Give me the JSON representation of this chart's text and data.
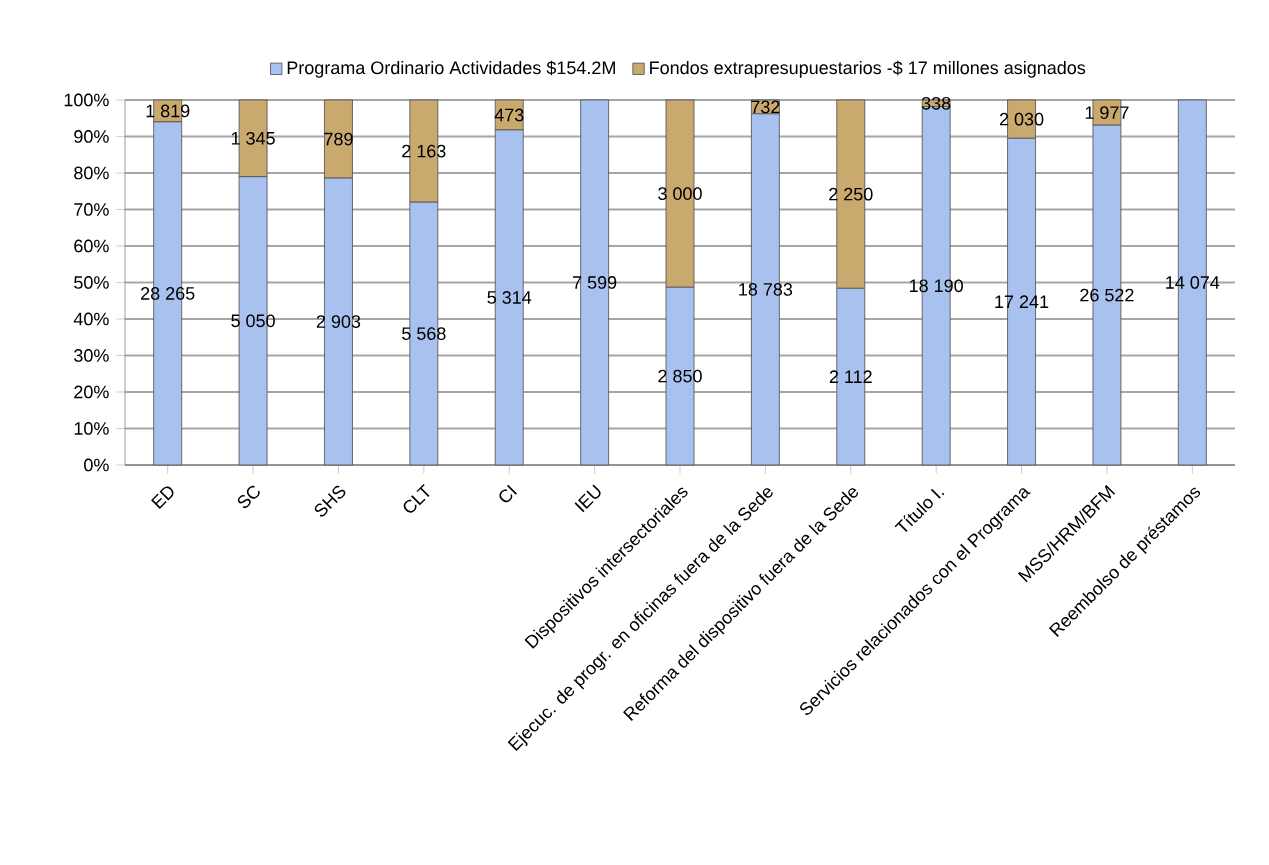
{
  "chart_data": {
    "type": "bar",
    "stacked": true,
    "categories": [
      "ED",
      "SC",
      "SHS",
      "CLT",
      "CI",
      "IEU",
      "Dispositivos intersectoriales",
      "Ejecuc. de progr. en oficinas fuera de la Sede",
      "Reforma del dispositivo fuera de la Sede",
      "Título I.",
      "Servicios relacionados con el Programa",
      "MSS/HRM/BFM",
      "Reembolso de préstamos"
    ],
    "series": [
      {
        "name": "Programa Ordinario   Actividades $154.2M",
        "color": "#a9c1ee",
        "values": [
          94.0,
          79.0,
          78.6,
          72.0,
          91.8,
          100,
          48.7,
          96.2,
          48.4,
          98.2,
          89.5,
          93.1,
          100
        ]
      },
      {
        "name": "Fondos extrapresupuestarios -$ 17 millones asignados",
        "color": "#c9a96e",
        "values": [
          6.0,
          21.0,
          21.4,
          28.0,
          8.2,
          0,
          51.3,
          3.8,
          51.6,
          1.8,
          10.5,
          6.9,
          0
        ]
      }
    ],
    "annotations": [
      "28 265",
      "1 819",
      "5 050",
      "1 345",
      "2 903",
      "789",
      "5 568",
      "2 163",
      "5 314",
      "473",
      "7 599",
      "2 850",
      "3 000",
      "18 783",
      "732",
      "2 112",
      "2 250",
      "18 190",
      "338",
      "17 241",
      "2 030",
      "26 522",
      "1 977",
      "14 074"
    ],
    "ylim": [
      0,
      100
    ],
    "yticks": [
      {
        "value": 0,
        "label": "0%"
      },
      {
        "value": 10,
        "label": "10%"
      },
      {
        "value": 20,
        "label": "20%"
      },
      {
        "value": 30,
        "label": "30%"
      },
      {
        "value": 40,
        "label": "40%"
      },
      {
        "value": 50,
        "label": "50%"
      },
      {
        "value": 60,
        "label": "60%"
      },
      {
        "value": 70,
        "label": "70%"
      },
      {
        "value": 80,
        "label": "80%"
      },
      {
        "value": 90,
        "label": "90%"
      },
      {
        "value": 100,
        "label": "100%"
      }
    ],
    "grid": "y",
    "legend": "top"
  }
}
